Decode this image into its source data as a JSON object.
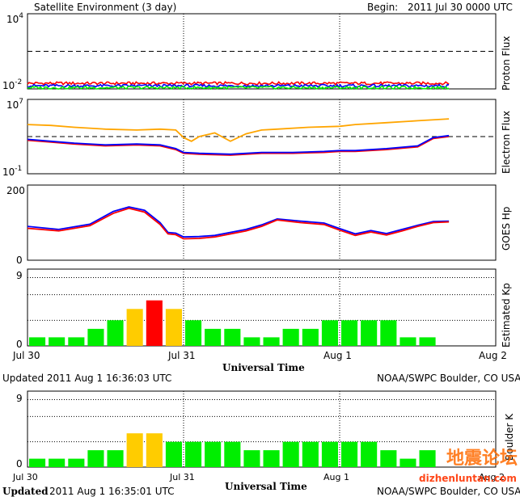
{
  "header": {
    "title": "Satellite Environment (3 day)",
    "begin_label": "Begin:",
    "begin_value": "2011 Jul 30 0000 UTC"
  },
  "x_axis": {
    "ticks": [
      "Jul 30",
      "Jul 31",
      "Aug 1",
      "Aug 2"
    ],
    "label": "Universal Time"
  },
  "footer1": {
    "updated": "Updated 2011 Aug  1 16:36:03 UTC",
    "source": "NOAA/SWPC Boulder, CO USA"
  },
  "footer2": {
    "updated_label": "Updated",
    "updated_value": "2011 Aug  1 16:35:01 UTC",
    "source": "NOAA/SWPC Boulder, CO USA"
  },
  "watermark": {
    "chinese": "地震论坛",
    "url": "dizhenluntan.com"
  },
  "colors": {
    "red": "#ff0000",
    "blue": "#0000ff",
    "green": "#00ee00",
    "orange": "#ffa500",
    "yellow": "#ffcc00",
    "kp_red": "#ff0000"
  },
  "chart_data": [
    {
      "type": "line",
      "panel": "proton",
      "ylabel": "Proton Flux",
      "ytick_labels": [
        "10^4",
        "10^-2"
      ],
      "y_scale": "log",
      "ylim": [
        -2,
        4
      ],
      "threshold": 1,
      "x_days": [
        0,
        2.7
      ],
      "series": [
        {
          "color": "red",
          "level": -1.55
        },
        {
          "color": "blue",
          "level": -1.75
        },
        {
          "color": "green",
          "level": -1.9
        }
      ]
    },
    {
      "type": "line",
      "panel": "electron",
      "ylabel": "Electron Flux",
      "ytick_labels": [
        "10^7",
        "10^-1"
      ],
      "y_scale": "log",
      "ylim": [
        -1,
        7
      ],
      "threshold": 3,
      "series": [
        {
          "color": "orange",
          "x": [
            0,
            0.15,
            0.3,
            0.5,
            0.7,
            0.85,
            0.95,
            1.0,
            1.05,
            1.1,
            1.2,
            1.3,
            1.4,
            1.5,
            1.6,
            1.8,
            2.0,
            2.1,
            2.3,
            2.5,
            2.7
          ],
          "y": [
            4.3,
            4.2,
            4.0,
            3.8,
            3.7,
            3.8,
            3.7,
            2.9,
            2.5,
            3.0,
            3.4,
            2.5,
            3.3,
            3.7,
            3.8,
            4.0,
            4.1,
            4.3,
            4.5,
            4.7,
            4.9
          ]
        },
        {
          "color": "red",
          "x": [
            0,
            0.15,
            0.3,
            0.5,
            0.7,
            0.85,
            0.95,
            1.0,
            1.1,
            1.3,
            1.5,
            1.7,
            1.9,
            2.0,
            2.1,
            2.3,
            2.5,
            2.6,
            2.7
          ],
          "y": [
            2.6,
            2.4,
            2.2,
            2.0,
            2.1,
            2.0,
            1.6,
            1.2,
            1.1,
            1.0,
            1.2,
            1.2,
            1.3,
            1.4,
            1.4,
            1.6,
            1.9,
            2.8,
            3.0
          ]
        },
        {
          "color": "blue",
          "x": [
            0,
            0.15,
            0.3,
            0.5,
            0.7,
            0.85,
            0.95,
            1.0,
            1.1,
            1.3,
            1.5,
            1.7,
            1.9,
            2.0,
            2.1,
            2.3,
            2.5,
            2.6,
            2.7
          ],
          "y": [
            2.7,
            2.5,
            2.3,
            2.1,
            2.2,
            2.1,
            1.7,
            1.3,
            1.2,
            1.1,
            1.3,
            1.3,
            1.4,
            1.5,
            1.5,
            1.7,
            2.0,
            2.9,
            3.1
          ]
        }
      ]
    },
    {
      "type": "line",
      "panel": "goes_hp",
      "ylabel": "GOES Hp",
      "ytick_labels": [
        "200",
        "0"
      ],
      "ylim": [
        0,
        200
      ],
      "series": [
        {
          "color": "red",
          "x": [
            0,
            0.2,
            0.4,
            0.55,
            0.65,
            0.75,
            0.85,
            0.9,
            0.95,
            1.0,
            1.1,
            1.2,
            1.4,
            1.5,
            1.6,
            1.75,
            1.9,
            2.0,
            2.1,
            2.2,
            2.3,
            2.4,
            2.5,
            2.6,
            2.7
          ],
          "y": [
            85,
            78,
            92,
            125,
            138,
            128,
            95,
            70,
            68,
            57,
            58,
            62,
            78,
            90,
            107,
            100,
            95,
            80,
            66,
            75,
            67,
            78,
            90,
            100,
            102
          ]
        },
        {
          "color": "blue",
          "x": [
            0,
            0.2,
            0.4,
            0.55,
            0.65,
            0.75,
            0.85,
            0.9,
            0.95,
            1.0,
            1.1,
            1.2,
            1.4,
            1.5,
            1.6,
            1.75,
            1.9,
            2.0,
            2.1,
            2.2,
            2.3,
            2.4,
            2.5,
            2.6,
            2.7
          ],
          "y": [
            90,
            82,
            96,
            130,
            142,
            133,
            100,
            74,
            72,
            62,
            63,
            66,
            82,
            94,
            110,
            104,
            99,
            84,
            70,
            79,
            71,
            82,
            93,
            103,
            104
          ]
        }
      ]
    },
    {
      "type": "bar",
      "panel": "kp",
      "ylabel": "Estimated Kp",
      "ytick_labels": [
        "9",
        "0"
      ],
      "ylim": [
        0,
        9
      ],
      "values": [
        1,
        1,
        1,
        2,
        3,
        4.33,
        5.33,
        4.33,
        3,
        2,
        2,
        1,
        1,
        2,
        2,
        3,
        3,
        3,
        3,
        1,
        1
      ],
      "colors": [
        "green",
        "green",
        "green",
        "green",
        "green",
        "yellow",
        "red",
        "yellow",
        "green",
        "green",
        "green",
        "green",
        "green",
        "green",
        "green",
        "green",
        "green",
        "green",
        "green",
        "green",
        "green"
      ]
    },
    {
      "type": "bar",
      "panel": "boulder_k",
      "ylabel": "Boulder K",
      "ytick_labels": [
        "9",
        "0"
      ],
      "ylim": [
        0,
        9
      ],
      "values": [
        1,
        1,
        1,
        2,
        2,
        4,
        4,
        3,
        3,
        3,
        3,
        2,
        2,
        3,
        3,
        3,
        3,
        3,
        2,
        1,
        2
      ],
      "colors": [
        "green",
        "green",
        "green",
        "green",
        "green",
        "yellow",
        "yellow",
        "green",
        "green",
        "green",
        "green",
        "green",
        "green",
        "green",
        "green",
        "green",
        "green",
        "green",
        "green",
        "green",
        "green"
      ]
    }
  ]
}
